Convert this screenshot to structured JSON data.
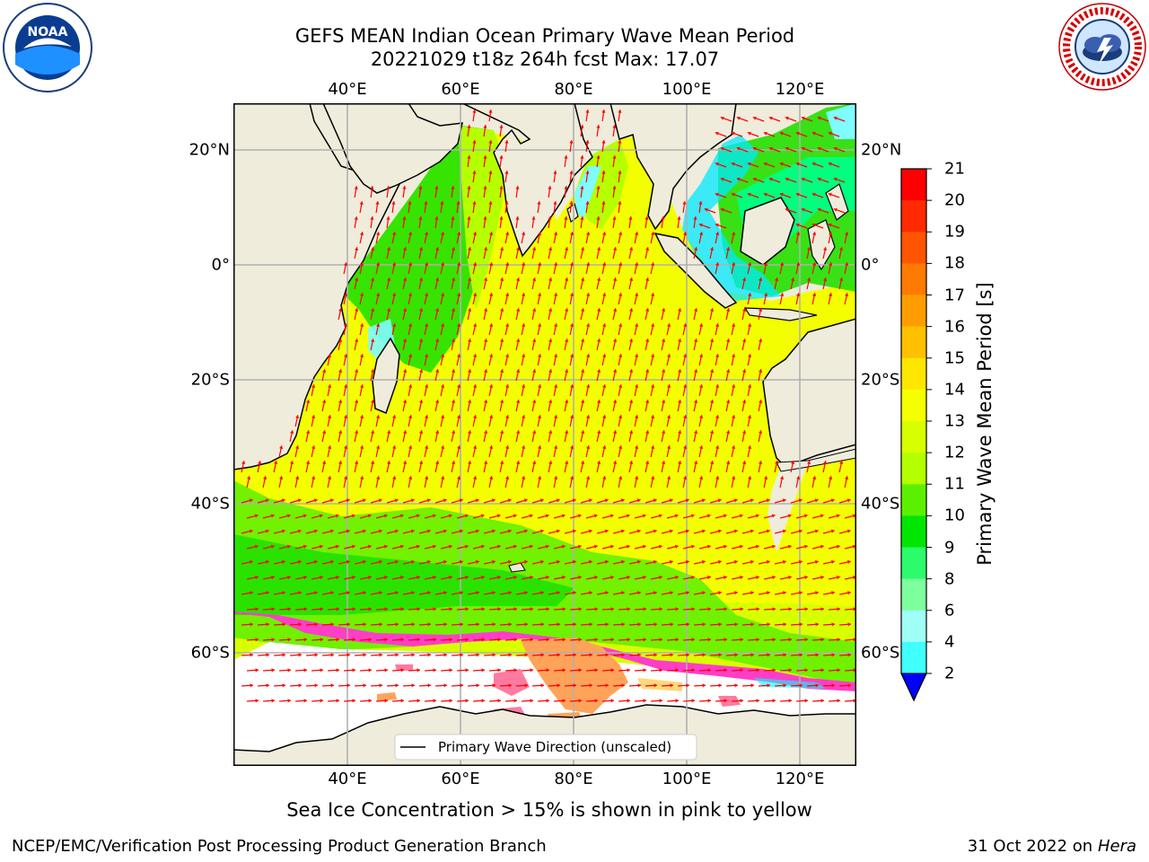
{
  "title": {
    "line1": "GEFS MEAN Indian Ocean Primary Wave Mean Period",
    "line2": "20221029 t18z 264h fcst   Max: 17.07"
  },
  "axes": {
    "lon_ticks": [
      "40°E",
      "60°E",
      "80°E",
      "100°E",
      "120°E"
    ],
    "lat_ticks": [
      "20°N",
      "0°",
      "20°S",
      "40°S",
      "60°S"
    ]
  },
  "colorbar": {
    "label": "Primary Wave Mean Period [s]",
    "ticks": [
      "21",
      "20",
      "19",
      "18",
      "17",
      "16",
      "15",
      "14",
      "13",
      "12",
      "11",
      "10",
      "9",
      "8",
      "6",
      "4",
      "2"
    ],
    "colors": [
      "#ff0000",
      "#ff2200",
      "#ff4a00",
      "#ff6a00",
      "#ff8e00",
      "#ffb400",
      "#ffd800",
      "#ffff00",
      "#e8ff00",
      "#c8ff00",
      "#7cfc00",
      "#00ee00",
      "#00ff7f",
      "#66ff99",
      "#a0ffff",
      "#40ffff",
      "#00e5ff",
      "#00bfff",
      "#0080ff"
    ]
  },
  "legend": {
    "label": "Primary Wave Direction (unscaled)"
  },
  "annotation": "Sea Ice Concentration > 15% is shown in pink to yellow",
  "footer": {
    "left": "NCEP/EMC/Verification Post Processing Product Generation Branch",
    "right_date": "31 Oct 2022 on ",
    "right_machine": "Hera"
  },
  "logos": {
    "left": "NOAA",
    "right": "NATIONAL WEATHER SERVICE"
  }
}
